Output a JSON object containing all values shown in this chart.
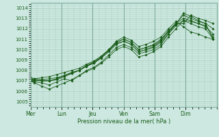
{
  "xlabel": "Pression niveau de la mer( hPa )",
  "ylim": [
    1004.5,
    1014.5
  ],
  "yticks": [
    1005,
    1006,
    1007,
    1008,
    1009,
    1010,
    1011,
    1012,
    1013,
    1014
  ],
  "day_labels": [
    "Mer",
    "Lun",
    "Jeu",
    "Ven",
    "Sam",
    "Dim"
  ],
  "day_positions": [
    0.0,
    0.833,
    1.667,
    2.5,
    3.333,
    4.167
  ],
  "xlim": [
    0,
    5.0
  ],
  "bg_color": "#cce8e0",
  "grid_color": "#aaccbe",
  "line_color": "#1a5c1a",
  "marker_color": "#1a5c1a",
  "lines": [
    {
      "x": [
        0.0,
        0.1,
        0.3,
        0.5,
        0.7,
        0.9,
        1.1,
        1.3,
        1.5,
        1.7,
        1.9,
        2.1,
        2.3,
        2.5,
        2.7,
        2.9,
        3.1,
        3.3,
        3.5,
        3.7,
        3.9,
        4.1,
        4.3,
        4.5,
        4.7,
        4.9
      ],
      "y": [
        1007.0,
        1006.9,
        1006.8,
        1006.6,
        1006.9,
        1007.2,
        1007.0,
        1007.5,
        1008.0,
        1008.3,
        1008.8,
        1009.5,
        1010.2,
        1010.5,
        1010.2,
        1009.6,
        1009.8,
        1010.0,
        1010.5,
        1011.5,
        1012.5,
        1013.3,
        1013.0,
        1012.7,
        1012.5,
        1011.0
      ]
    },
    {
      "x": [
        0.0,
        0.1,
        0.3,
        0.5,
        0.7,
        0.9,
        1.1,
        1.3,
        1.5,
        1.7,
        1.9,
        2.1,
        2.3,
        2.5,
        2.7,
        2.9,
        3.1,
        3.3,
        3.5,
        3.7,
        3.9,
        4.1,
        4.3,
        4.5,
        4.7,
        4.9
      ],
      "y": [
        1007.0,
        1006.8,
        1006.5,
        1006.2,
        1006.5,
        1006.8,
        1007.1,
        1007.5,
        1007.9,
        1008.2,
        1008.7,
        1009.3,
        1010.0,
        1010.3,
        1010.0,
        1009.3,
        1009.5,
        1009.8,
        1010.3,
        1011.2,
        1012.0,
        1012.8,
        1012.7,
        1012.5,
        1012.3,
        1011.2
      ]
    },
    {
      "x": [
        0.0,
        0.1,
        0.3,
        0.5,
        0.7,
        0.9,
        1.1,
        1.3,
        1.5,
        1.7,
        1.9,
        2.1,
        2.3,
        2.5,
        2.7,
        2.9,
        3.1,
        3.3,
        3.5,
        3.7,
        3.9,
        4.1,
        4.3,
        4.5,
        4.7,
        4.9
      ],
      "y": [
        1007.0,
        1007.0,
        1007.0,
        1007.0,
        1007.2,
        1007.5,
        1007.8,
        1008.0,
        1008.4,
        1008.7,
        1009.2,
        1009.8,
        1010.5,
        1010.8,
        1010.5,
        1009.8,
        1010.0,
        1010.2,
        1010.7,
        1011.5,
        1012.3,
        1012.8,
        1012.5,
        1012.2,
        1012.0,
        1011.0
      ]
    },
    {
      "x": [
        0.0,
        0.1,
        0.3,
        0.5,
        0.7,
        0.9,
        1.1,
        1.3,
        1.5,
        1.7,
        1.9,
        2.1,
        2.3,
        2.5,
        2.7,
        2.9,
        3.1,
        3.3,
        3.5,
        3.7,
        3.9,
        4.1,
        4.3,
        4.5,
        4.7,
        4.9
      ],
      "y": [
        1007.0,
        1007.2,
        1007.3,
        1007.4,
        1007.6,
        1007.8,
        1008.0,
        1008.2,
        1008.6,
        1008.9,
        1009.4,
        1010.0,
        1010.7,
        1011.0,
        1010.7,
        1010.0,
        1010.2,
        1010.4,
        1010.9,
        1011.8,
        1012.5,
        1013.0,
        1012.8,
        1012.5,
        1012.2,
        1011.5
      ]
    },
    {
      "x": [
        0.0,
        0.1,
        0.3,
        0.5,
        0.7,
        0.9,
        1.1,
        1.3,
        1.5,
        1.7,
        1.9,
        2.1,
        2.3,
        2.5,
        2.7,
        2.9,
        3.1,
        3.3,
        3.5,
        3.7,
        3.9,
        4.1,
        4.3,
        4.5,
        4.7,
        4.9
      ],
      "y": [
        1007.1,
        1007.0,
        1007.1,
        1007.2,
        1007.3,
        1007.5,
        1007.8,
        1008.0,
        1008.4,
        1008.7,
        1009.2,
        1009.9,
        1010.6,
        1010.8,
        1010.5,
        1009.8,
        1010.0,
        1010.3,
        1010.8,
        1011.7,
        1012.4,
        1013.5,
        1013.2,
        1012.8,
        1012.5,
        1012.0
      ]
    },
    {
      "x": [
        0.0,
        0.1,
        0.3,
        0.5,
        0.7,
        0.9,
        1.1,
        1.3,
        1.5,
        1.7,
        1.9,
        2.1,
        2.3,
        2.5,
        2.7,
        2.9,
        3.1,
        3.3,
        3.5,
        3.7,
        3.9,
        4.1,
        4.3,
        4.5,
        4.7,
        4.9
      ],
      "y": [
        1007.2,
        1007.1,
        1007.0,
        1007.0,
        1007.1,
        1007.4,
        1007.7,
        1008.0,
        1008.5,
        1008.8,
        1009.3,
        1010.0,
        1010.7,
        1011.0,
        1010.7,
        1010.0,
        1010.2,
        1010.5,
        1011.0,
        1011.8,
        1012.5,
        1012.5,
        1013.3,
        1013.0,
        1012.8,
        1012.5
      ]
    },
    {
      "x": [
        0.0,
        0.1,
        0.3,
        0.5,
        0.7,
        0.9,
        1.1,
        1.3,
        1.5,
        1.7,
        1.9,
        2.1,
        2.3,
        2.5,
        2.7,
        2.9,
        3.1,
        3.3,
        3.5,
        3.7,
        3.9,
        4.1,
        4.3,
        4.5,
        4.7,
        4.9
      ],
      "y": [
        1007.3,
        1007.2,
        1007.1,
        1007.0,
        1007.2,
        1007.5,
        1007.7,
        1008.0,
        1008.4,
        1008.8,
        1009.3,
        1010.0,
        1010.8,
        1011.2,
        1010.9,
        1010.3,
        1010.5,
        1010.8,
        1011.2,
        1012.0,
        1012.7,
        1012.2,
        1011.7,
        1011.5,
        1011.2,
        1011.0
      ]
    }
  ]
}
